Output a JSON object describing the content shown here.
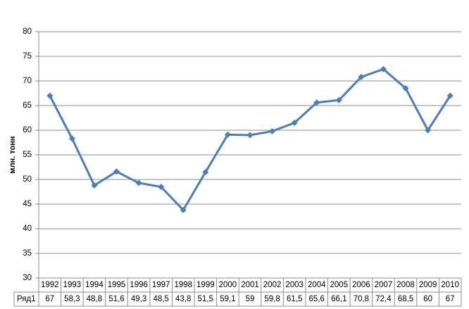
{
  "chart_data": {
    "type": "line",
    "y_label": "млн. тонн",
    "categories": [
      "1992",
      "1993",
      "1994",
      "1995",
      "1996",
      "1997",
      "1998",
      "1999",
      "2000",
      "2001",
      "2002",
      "2003",
      "2004",
      "2005",
      "2006",
      "2007",
      "2008",
      "2009",
      "2010"
    ],
    "series": [
      {
        "name": "Ряд1",
        "color": "#4a7ebb",
        "values": [
          67,
          58.3,
          48.8,
          51.6,
          49.3,
          48.5,
          43.8,
          51.5,
          59.1,
          59,
          59.8,
          61.5,
          65.6,
          66.1,
          70.8,
          72.4,
          68.5,
          60,
          67
        ],
        "value_labels": [
          "67",
          "58,3",
          "48,8",
          "51,6",
          "49,3",
          "48,5",
          "43,8",
          "51,5",
          "59,1",
          "59",
          "59,8",
          "61,5",
          "65,6",
          "66,1",
          "70,8",
          "72,4",
          "68,5",
          "60",
          "67"
        ]
      }
    ],
    "ylim": [
      30,
      80
    ],
    "yticks": [
      30,
      35,
      40,
      45,
      50,
      55,
      60,
      65,
      70,
      75,
      80
    ],
    "grid": true
  }
}
